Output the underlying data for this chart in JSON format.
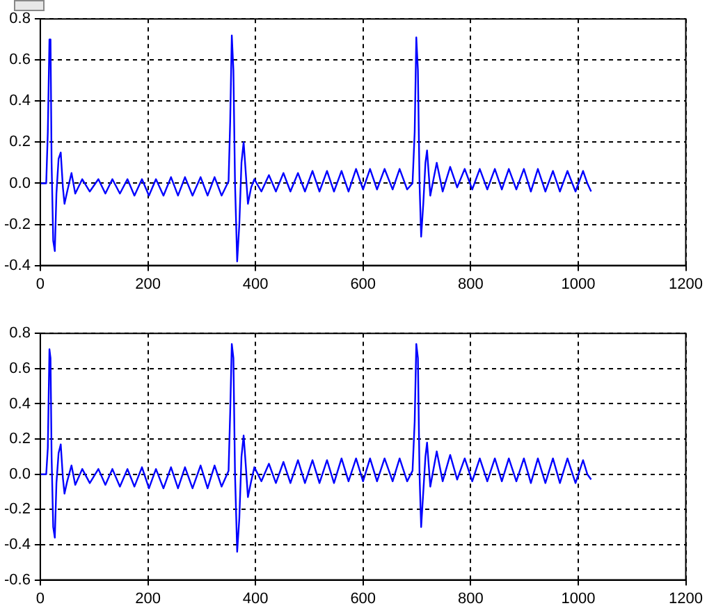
{
  "chart_data": [
    {
      "type": "line",
      "x": [
        0,
        11,
        14,
        17,
        19,
        21,
        24,
        27,
        30,
        34,
        38,
        42,
        45,
        50,
        58,
        65,
        78,
        92,
        108,
        121,
        134,
        148,
        162,
        175,
        189,
        202,
        215,
        229,
        243,
        256,
        269,
        283,
        298,
        311,
        324,
        337,
        350,
        353,
        356,
        359,
        362,
        366,
        370,
        374,
        378,
        382,
        386,
        392,
        398,
        411,
        425,
        438,
        452,
        465,
        479,
        492,
        506,
        519,
        533,
        546,
        560,
        573,
        587,
        600,
        613,
        626,
        640,
        655,
        668,
        682,
        692,
        696,
        699,
        702,
        705,
        708,
        712,
        716,
        719,
        725,
        737,
        748,
        762,
        775,
        789,
        803,
        817,
        831,
        845,
        858,
        871,
        885,
        899,
        912,
        925,
        939,
        953,
        966,
        980,
        995,
        1009,
        1017,
        1024
      ],
      "series": [
        {
          "color": "#0000ff",
          "values": [
            0,
            0,
            0.25,
            0.7,
            0.7,
            0.1,
            -0.28,
            -0.33,
            -0.05,
            0.12,
            0.15,
            -0.02,
            -0.1,
            -0.04,
            0.05,
            -0.05,
            0.02,
            -0.04,
            0.02,
            -0.05,
            0.02,
            -0.05,
            0.02,
            -0.06,
            0.02,
            -0.06,
            0.02,
            -0.06,
            0.03,
            -0.06,
            0.03,
            -0.06,
            0.03,
            -0.06,
            0.03,
            -0.06,
            0.01,
            0.3,
            0.72,
            0.55,
            0.0,
            -0.38,
            -0.2,
            0.1,
            0.2,
            0.05,
            -0.1,
            -0.02,
            0.02,
            -0.04,
            0.04,
            -0.04,
            0.05,
            -0.04,
            0.05,
            -0.04,
            0.06,
            -0.04,
            0.06,
            -0.04,
            0.06,
            -0.04,
            0.07,
            -0.03,
            0.07,
            -0.03,
            0.07,
            -0.03,
            0.07,
            -0.03,
            0.0,
            0.25,
            0.71,
            0.55,
            0.0,
            -0.26,
            -0.1,
            0.1,
            0.16,
            -0.06,
            0.1,
            -0.04,
            0.08,
            -0.02,
            0.07,
            -0.03,
            0.07,
            -0.03,
            0.07,
            -0.03,
            0.07,
            -0.03,
            0.07,
            -0.04,
            0.07,
            -0.04,
            0.06,
            -0.04,
            0.06,
            -0.04,
            0.06,
            0.0,
            -0.04
          ]
        }
      ],
      "xlim": [
        0,
        1200
      ],
      "xticks": [
        0,
        200,
        400,
        600,
        800,
        1000,
        1200
      ],
      "ylim": [
        -0.4,
        0.8
      ],
      "yticks": [
        {
          "value": -0.4,
          "label": "-0.4"
        },
        {
          "value": -0.2,
          "label": "-0.2"
        },
        {
          "value": 0,
          "label": "0.0"
        },
        {
          "value": 0.2,
          "label": "0.2"
        },
        {
          "value": 0.4,
          "label": "0.4"
        },
        {
          "value": 0.6,
          "label": "0.6"
        },
        {
          "value": 0.8,
          "label": "0.8"
        }
      ],
      "grid": true,
      "legend": false,
      "marker": "none",
      "line_style": "solid"
    },
    {
      "type": "line",
      "x": [
        0,
        11,
        14,
        17,
        19,
        21,
        24,
        27,
        30,
        34,
        38,
        42,
        45,
        50,
        58,
        65,
        78,
        92,
        108,
        121,
        134,
        148,
        162,
        175,
        189,
        202,
        215,
        229,
        243,
        256,
        269,
        283,
        298,
        311,
        324,
        337,
        350,
        353,
        356,
        359,
        362,
        366,
        370,
        374,
        378,
        382,
        386,
        392,
        398,
        411,
        425,
        438,
        452,
        465,
        479,
        492,
        506,
        519,
        533,
        546,
        560,
        573,
        587,
        600,
        613,
        626,
        640,
        655,
        668,
        682,
        692,
        696,
        699,
        702,
        705,
        708,
        712,
        716,
        719,
        725,
        737,
        748,
        762,
        775,
        789,
        803,
        817,
        831,
        845,
        858,
        871,
        885,
        899,
        912,
        925,
        939,
        953,
        966,
        980,
        995,
        1009,
        1017,
        1024
      ],
      "series": [
        {
          "color": "#0000ff",
          "values": [
            0,
            0,
            0.15,
            0.71,
            0.66,
            0.1,
            -0.3,
            -0.36,
            -0.05,
            0.12,
            0.17,
            -0.02,
            -0.11,
            -0.04,
            0.05,
            -0.06,
            0.03,
            -0.05,
            0.03,
            -0.06,
            0.03,
            -0.07,
            0.03,
            -0.07,
            0.04,
            -0.08,
            0.03,
            -0.08,
            0.04,
            -0.08,
            0.04,
            -0.08,
            0.05,
            -0.08,
            0.05,
            -0.07,
            0.02,
            0.35,
            0.74,
            0.66,
            0.0,
            -0.44,
            -0.25,
            0.1,
            0.22,
            0.05,
            -0.13,
            -0.04,
            0.04,
            -0.04,
            0.06,
            -0.05,
            0.07,
            -0.05,
            0.08,
            -0.05,
            0.08,
            -0.05,
            0.08,
            -0.05,
            0.09,
            -0.04,
            0.09,
            -0.04,
            0.09,
            -0.04,
            0.09,
            -0.04,
            0.09,
            -0.04,
            0.02,
            0.3,
            0.74,
            0.66,
            0.0,
            -0.3,
            -0.1,
            0.1,
            0.18,
            -0.07,
            0.13,
            -0.04,
            0.11,
            -0.03,
            0.09,
            -0.04,
            0.09,
            -0.04,
            0.09,
            -0.04,
            0.09,
            -0.04,
            0.09,
            -0.05,
            0.09,
            -0.05,
            0.09,
            -0.05,
            0.09,
            -0.05,
            0.08,
            0.0,
            -0.03
          ]
        }
      ],
      "xlim": [
        0,
        1200
      ],
      "xticks": [
        0,
        200,
        400,
        600,
        800,
        1000,
        1200
      ],
      "ylim": [
        -0.6,
        0.8
      ],
      "yticks": [
        {
          "value": -0.6,
          "label": "-0.6"
        },
        {
          "value": -0.4,
          "label": "-0.4"
        },
        {
          "value": -0.2,
          "label": "-0.2"
        },
        {
          "value": 0,
          "label": "0.0"
        },
        {
          "value": 0.2,
          "label": "0.2"
        },
        {
          "value": 0.4,
          "label": "0.4"
        },
        {
          "value": 0.6,
          "label": "0.6"
        },
        {
          "value": 0.8,
          "label": "0.8"
        }
      ],
      "grid": true,
      "legend": false,
      "marker": "none",
      "line_style": "solid"
    }
  ]
}
